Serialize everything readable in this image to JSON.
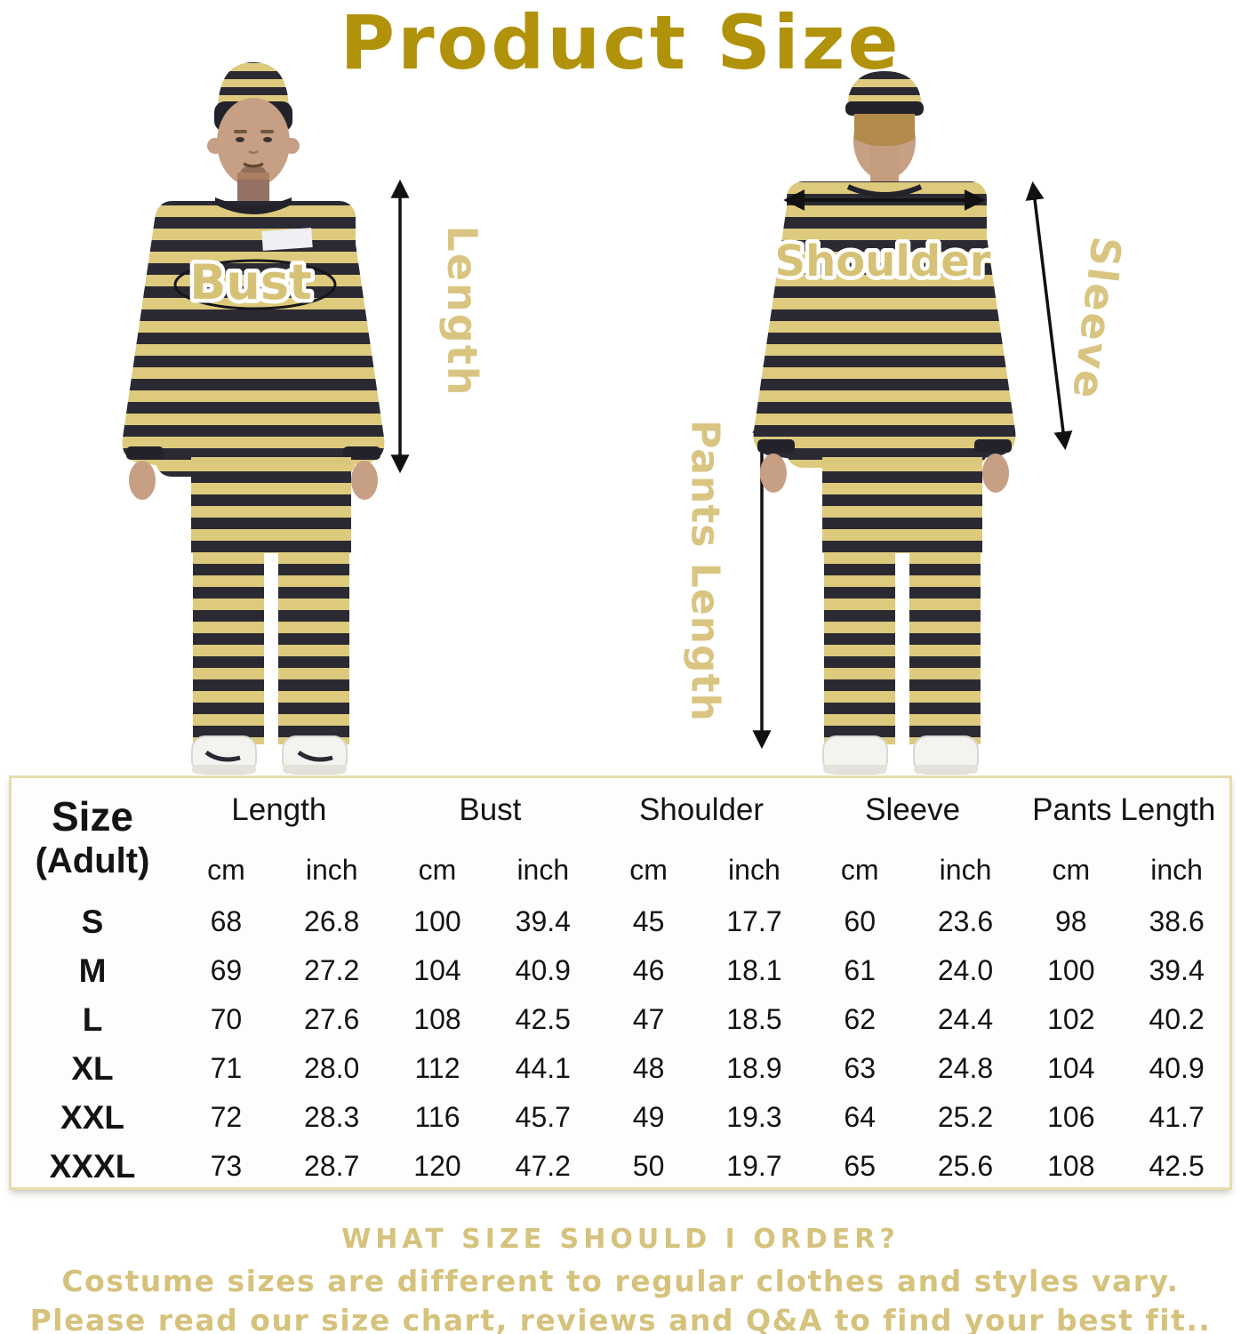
{
  "title": "Product Size",
  "measurement_labels": {
    "bust": "Bust",
    "length": "Length",
    "shoulder": "Shoulder",
    "sleeve": "Sleeve",
    "pants_length": "Pants Length"
  },
  "size_table": {
    "corner": {
      "line1": "Size",
      "line2": "(Adult)"
    },
    "groups": [
      "Length",
      "Bust",
      "Shoulder",
      "Sleeve",
      "Pants Length"
    ],
    "units": {
      "cm": "cm",
      "inch": "inch"
    },
    "rows": [
      {
        "size": "S",
        "values": [
          "68",
          "26.8",
          "100",
          "39.4",
          "45",
          "17.7",
          "60",
          "23.6",
          "98",
          "38.6"
        ]
      },
      {
        "size": "M",
        "values": [
          "69",
          "27.2",
          "104",
          "40.9",
          "46",
          "18.1",
          "61",
          "24.0",
          "100",
          "39.4"
        ]
      },
      {
        "size": "L",
        "values": [
          "70",
          "27.6",
          "108",
          "42.5",
          "47",
          "18.5",
          "62",
          "24.4",
          "102",
          "40.2"
        ]
      },
      {
        "size": "XL",
        "values": [
          "71",
          "28.0",
          "112",
          "44.1",
          "48",
          "18.9",
          "63",
          "24.8",
          "104",
          "40.9"
        ]
      },
      {
        "size": "XXL",
        "values": [
          "72",
          "28.3",
          "116",
          "45.7",
          "49",
          "19.3",
          "64",
          "25.2",
          "106",
          "41.7"
        ]
      },
      {
        "size": "XXXL",
        "values": [
          "73",
          "28.7",
          "120",
          "47.2",
          "50",
          "19.7",
          "65",
          "25.6",
          "108",
          "42.5"
        ]
      }
    ]
  },
  "footer": {
    "line1": "WHAT SIZE SHOULD I ORDER?",
    "line2": "Costume sizes are different to regular clothes and styles vary.",
    "line3": "Please read our size chart, reviews and Q&A to find your best fit.."
  },
  "colors": {
    "title_gold": "#b1920b",
    "label_gold": "#d9c581",
    "photo_label_gold": "#d6c276",
    "stripe_yellow": "#ddca7d",
    "stripe_dark": "#2b2a33",
    "table_border": "#e6dcae",
    "arrow_black": "#111111"
  },
  "chart_data": {
    "type": "table",
    "title": "Product Size",
    "columns": [
      "Size (Adult)",
      "Length cm",
      "Length inch",
      "Bust cm",
      "Bust inch",
      "Shoulder cm",
      "Shoulder inch",
      "Sleeve cm",
      "Sleeve inch",
      "Pants Length cm",
      "Pants Length inch"
    ],
    "rows": [
      [
        "S",
        68,
        26.8,
        100,
        39.4,
        45,
        17.7,
        60,
        23.6,
        98,
        38.6
      ],
      [
        "M",
        69,
        27.2,
        104,
        40.9,
        46,
        18.1,
        61,
        24.0,
        100,
        39.4
      ],
      [
        "L",
        70,
        27.6,
        108,
        42.5,
        47,
        18.5,
        62,
        24.4,
        102,
        40.2
      ],
      [
        "XL",
        71,
        28.0,
        112,
        44.1,
        48,
        18.9,
        63,
        24.8,
        104,
        40.9
      ],
      [
        "XXL",
        72,
        28.3,
        116,
        45.7,
        49,
        19.3,
        64,
        25.2,
        106,
        41.7
      ],
      [
        "XXXL",
        73,
        28.7,
        120,
        47.2,
        50,
        19.7,
        65,
        25.6,
        108,
        42.5
      ]
    ]
  }
}
